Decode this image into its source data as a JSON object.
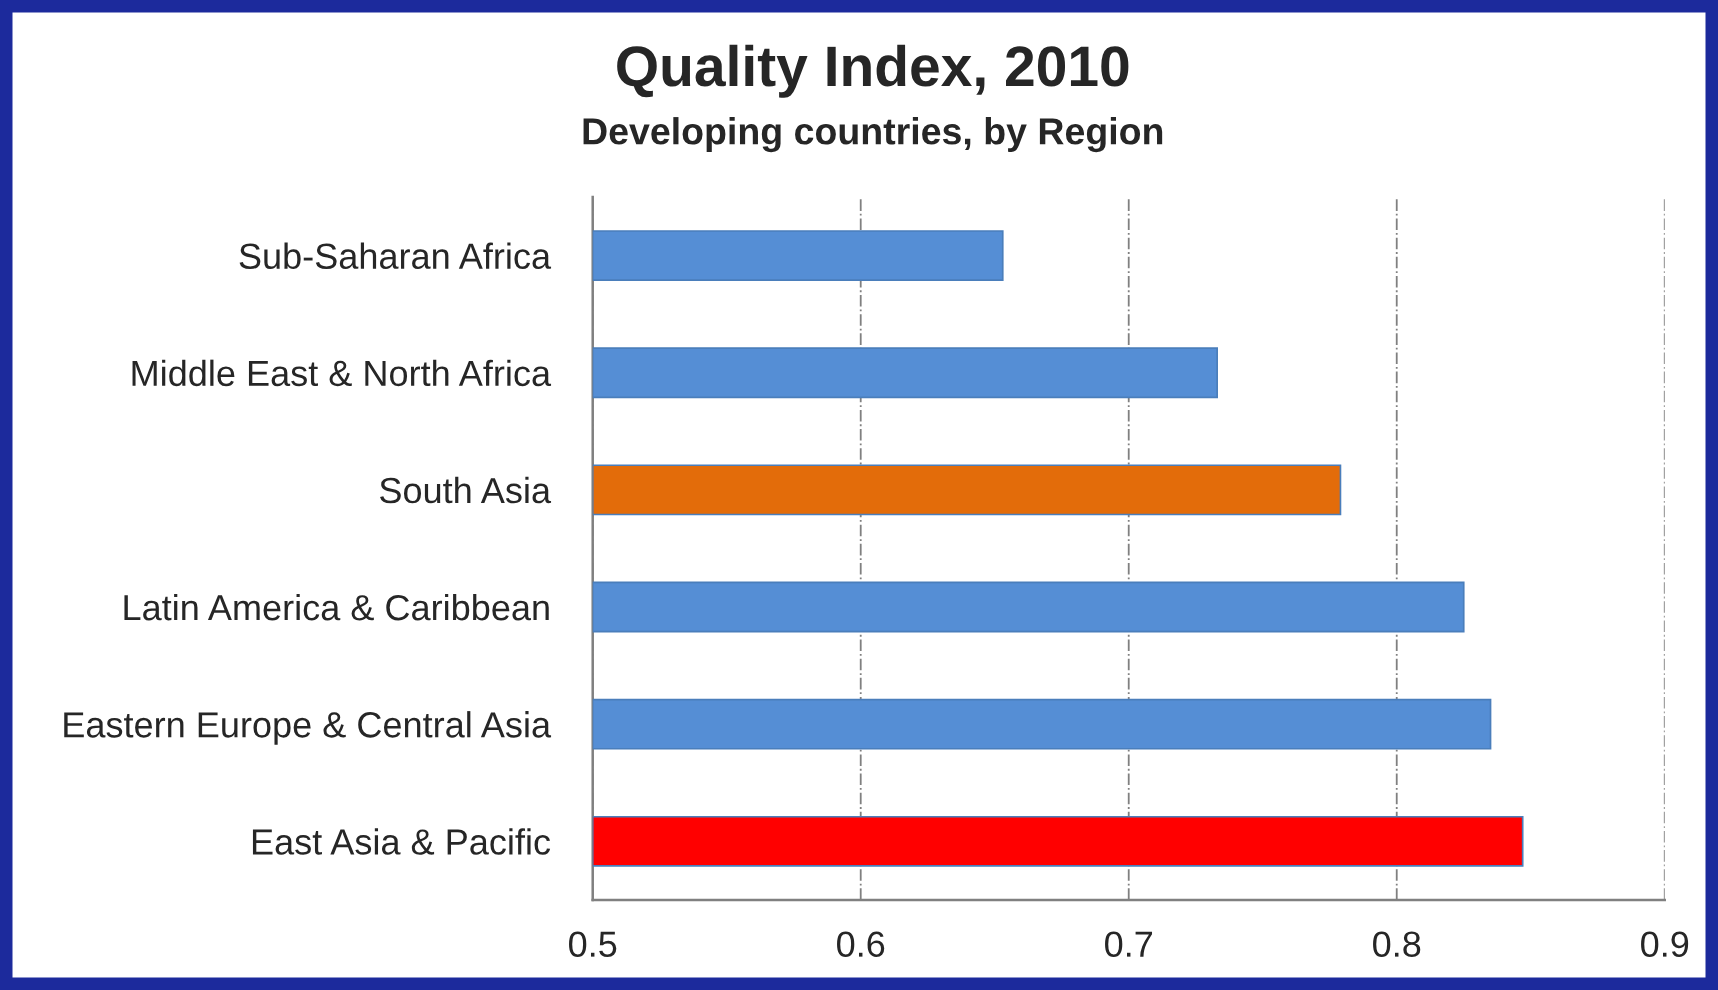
{
  "chart_data": {
    "type": "bar",
    "orientation": "horizontal",
    "title": "Quality Index, 2010",
    "subtitle": "Developing countries, by Region",
    "categories": [
      "Sub-Saharan Africa",
      "Middle East & North Africa",
      "South Asia",
      "Latin America & Caribbean",
      "Eastern Europe & Central Asia",
      "East Asia & Pacific"
    ],
    "values": [
      0.653,
      0.733,
      0.779,
      0.825,
      0.835,
      0.847
    ],
    "colors": [
      "#558ed5",
      "#558ed5",
      "#e36c0a",
      "#558ed5",
      "#558ed5",
      "#ff0000"
    ],
    "xlim": [
      0.5,
      0.9
    ],
    "xticks": [
      0.5,
      0.6,
      0.7,
      0.8,
      0.9
    ],
    "grid": "x",
    "legend": false
  }
}
